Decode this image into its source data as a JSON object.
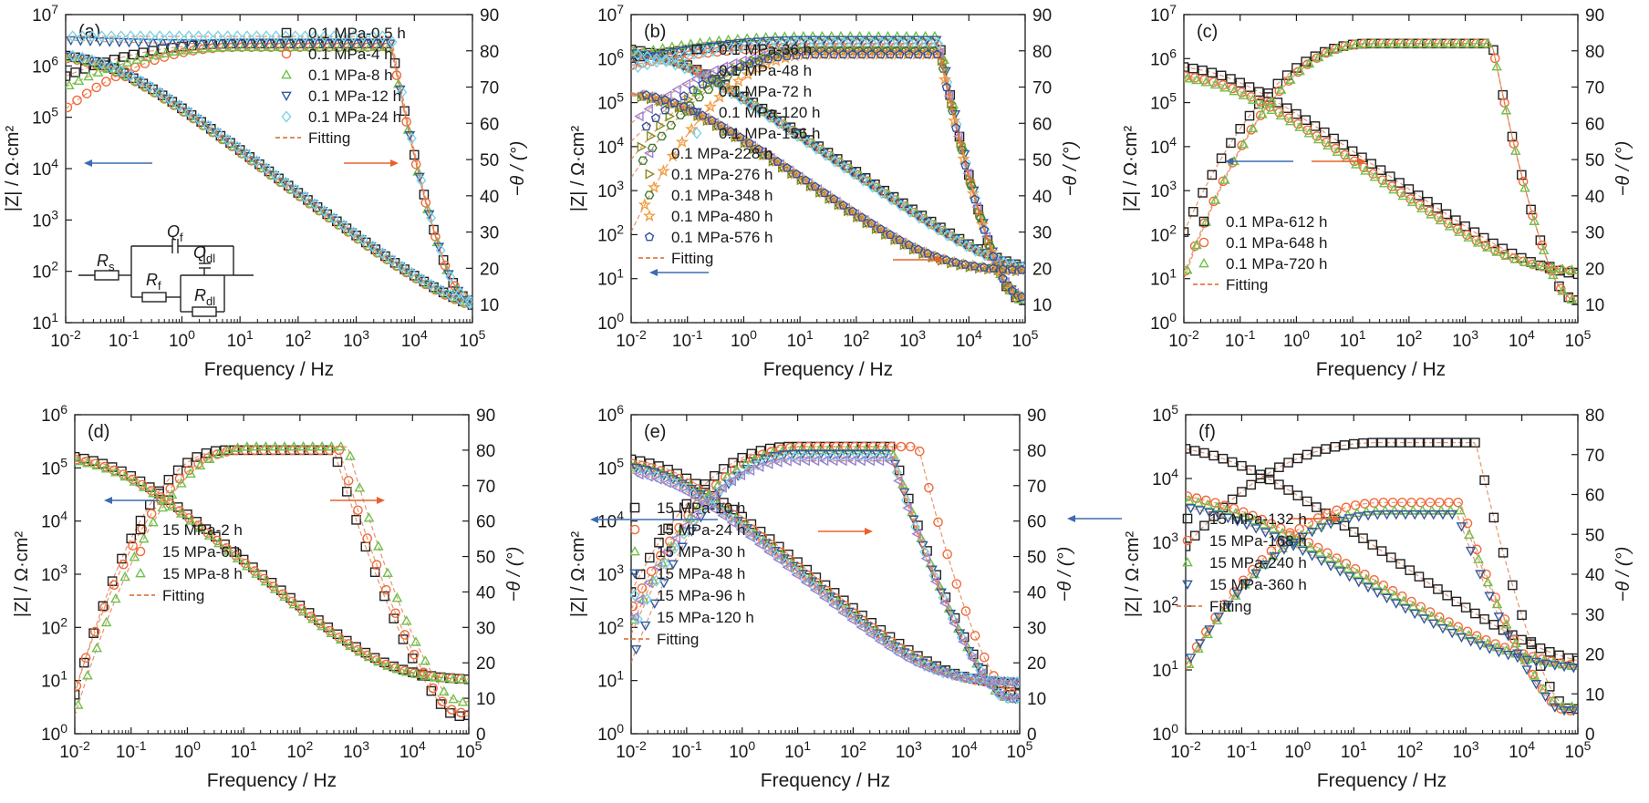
{
  "chart_data": [
    {
      "type": "line",
      "panel_label": "(a)",
      "xlabel": "Frequency / Hz",
      "ylabel_left": "|Z| / Ω·cm²",
      "ylabel_right": "−θ / (°)",
      "x_scale": "log",
      "xlim": [
        0.01,
        100000
      ],
      "xticks": [
        "10-2",
        "10-1",
        "100",
        "101",
        "102",
        "103",
        "104",
        "105"
      ],
      "y_left_scale": "log",
      "y_left_range": [
        10,
        10000000
      ],
      "y_left_ticks": [
        "101",
        "102",
        "103",
        "104",
        "105",
        "106",
        "107"
      ],
      "y_right_range": [
        5,
        90
      ],
      "y_right_ticks": [
        "10",
        "20",
        "30",
        "40",
        "50",
        "60",
        "70",
        "80",
        "90"
      ],
      "legend": [
        "0.1 MPa-0.5 h",
        "0.1 MPa-4 h",
        "0.1 MPa-8 h",
        "0.1 MPa-12 h",
        "0.1 MPa-24 h",
        "Fitting"
      ],
      "legend_position": "top-right",
      "has_circuit": true,
      "circuit_labels": {
        "rs": "R",
        "rs_sub": "s",
        "qf": "Q",
        "qf_sub": "f",
        "rf": "R",
        "rf_sub": "f",
        "qdl": "Q",
        "qdl_sub": "dl",
        "rdl": "R",
        "rdl_sub": "dl"
      },
      "series": [
        {
          "name": "0.1 MPa-0.5 h",
          "marker": "square",
          "color": "#222222",
          "z_low": 2000000,
          "z_slope": 0.84,
          "z_rs": 12,
          "phase_start": 73,
          "phase_peak": 82,
          "phase_peak_f": 10,
          "phase_fall_f": 4000,
          "phase_end": 8
        },
        {
          "name": "0.1 MPa-4 h",
          "marker": "circle",
          "color": "#f06a3c",
          "z_low": 1800000,
          "z_slope": 0.84,
          "z_rs": 12,
          "phase_start": 64,
          "phase_peak": 81,
          "phase_peak_f": 10,
          "phase_fall_f": 4000,
          "phase_end": 8
        },
        {
          "name": "0.1 MPa-8 h",
          "marker": "triangle",
          "color": "#6cc24a",
          "z_low": 1900000,
          "z_slope": 0.84,
          "z_rs": 13,
          "phase_start": 70,
          "phase_peak": 81,
          "phase_peak_f": 10,
          "phase_fall_f": 4000,
          "phase_end": 8
        },
        {
          "name": "0.1 MPa-12 h",
          "marker": "triangle-down",
          "color": "#2c5aa0",
          "z_low": 2000000,
          "z_slope": 0.84,
          "z_rs": 12,
          "phase_start": 83,
          "phase_peak": 82,
          "phase_peak_f": 10,
          "phase_fall_f": 4000,
          "phase_end": 8
        },
        {
          "name": "0.1 MPa-24 h",
          "marker": "diamond",
          "color": "#7dd3e8",
          "z_low": 2100000,
          "z_slope": 0.84,
          "z_rs": 12,
          "phase_start": 84,
          "phase_peak": 84,
          "phase_peak_f": 10,
          "phase_fall_f": 4000,
          "phase_end": 8
        }
      ]
    },
    {
      "type": "line",
      "panel_label": "(b)",
      "xlabel": "Frequency / Hz",
      "ylabel_left": "|Z| / Ω·cm²",
      "ylabel_right": "−θ / (°)",
      "x_scale": "log",
      "xlim": [
        0.01,
        100000
      ],
      "xticks": [
        "10-2",
        "10-1",
        "100",
        "101",
        "102",
        "103",
        "104",
        "105"
      ],
      "y_left_scale": "log",
      "y_left_range": [
        1,
        10000000
      ],
      "y_left_ticks": [
        "100",
        "101",
        "102",
        "103",
        "104",
        "105",
        "106",
        "107"
      ],
      "y_right_range": [
        5,
        90
      ],
      "y_right_ticks": [
        "10",
        "20",
        "30",
        "40",
        "50",
        "60",
        "70",
        "80",
        "90"
      ],
      "legend": [
        "0.1 MPa-36 h",
        "0.1 MPa-48 h",
        "0.1 MPa-72 h",
        "0.1 MPa-120 h",
        "0.1 MPa-156 h"
      ],
      "legend_position": "top-right",
      "legend2": [
        "0.1 MPa-228 h",
        "0.1 MPa-276 h",
        "0.1 MPa-348 h",
        "0.1 MPa-480 h",
        "0.1 MPa-576 h",
        "Fitting"
      ],
      "legend2_position": "bottom-left",
      "series": [
        {
          "name": "0.1 MPa-36 h",
          "marker": "square",
          "color": "#222222",
          "z_low": 2000000,
          "z_slope": 0.87,
          "z_rs": 12,
          "phase_start": 78,
          "phase_peak": 82,
          "phase_peak_f": 20,
          "phase_fall_f": 3000,
          "phase_end": 8
        },
        {
          "name": "0.1 MPa-48 h",
          "marker": "circle",
          "color": "#f06a3c",
          "z_low": 1800000,
          "z_slope": 0.87,
          "z_rs": 11,
          "phase_start": 76,
          "phase_peak": 81,
          "phase_peak_f": 20,
          "phase_fall_f": 3000,
          "phase_end": 8
        },
        {
          "name": "0.1 MPa-72 h",
          "marker": "triangle",
          "color": "#6cc24a",
          "z_low": 1900000,
          "z_slope": 0.87,
          "z_rs": 12,
          "phase_start": 79,
          "phase_peak": 84,
          "phase_peak_f": 20,
          "phase_fall_f": 3000,
          "phase_end": 8
        },
        {
          "name": "0.1 MPa-120 h",
          "marker": "triangle-down",
          "color": "#2c5aa0",
          "z_low": 1700000,
          "z_slope": 0.87,
          "z_rs": 13,
          "phase_start": 77,
          "phase_peak": 83,
          "phase_peak_f": 20,
          "phase_fall_f": 3000,
          "phase_end": 9
        },
        {
          "name": "0.1 MPa-156 h",
          "marker": "diamond",
          "color": "#7dd3e8",
          "z_low": 1600000,
          "z_slope": 0.87,
          "z_rs": 12,
          "phase_start": 75,
          "phase_peak": 82,
          "phase_peak_f": 20,
          "phase_fall_f": 3000,
          "phase_end": 9
        },
        {
          "name": "0.1 MPa-228 h",
          "marker": "triangle-left",
          "color": "#9b7fd4",
          "z_low": 200000,
          "z_slope": 0.87,
          "z_rs": 14,
          "phase_start": 60,
          "phase_peak": 80,
          "phase_peak_f": 20,
          "phase_fall_f": 3000,
          "phase_end": 9
        },
        {
          "name": "0.1 MPa-276 h",
          "marker": "triangle-right",
          "color": "#8a8a1e",
          "z_low": 180000,
          "z_slope": 0.87,
          "z_rs": 14,
          "phase_start": 50,
          "phase_peak": 80,
          "phase_peak_f": 20,
          "phase_fall_f": 3000,
          "phase_end": 9
        },
        {
          "name": "0.1 MPa-348 h",
          "marker": "hexagon",
          "color": "#3c7d2c",
          "z_low": 190000,
          "z_slope": 0.87,
          "z_rs": 15,
          "phase_start": 45,
          "phase_peak": 80,
          "phase_peak_f": 20,
          "phase_fall_f": 3000,
          "phase_end": 9
        },
        {
          "name": "0.1 MPa-480 h",
          "marker": "star",
          "color": "#f0a040",
          "z_low": 200000,
          "z_slope": 0.87,
          "z_rs": 15,
          "phase_start": 30,
          "phase_peak": 79,
          "phase_peak_f": 20,
          "phase_fall_f": 3000,
          "phase_end": 9
        },
        {
          "name": "0.1 MPa-576 h",
          "marker": "pentagon",
          "color": "#3050a0",
          "z_low": 210000,
          "z_slope": 0.87,
          "z_rs": 15,
          "phase_start": 55,
          "phase_peak": 79,
          "phase_peak_f": 20,
          "phase_fall_f": 3000,
          "phase_end": 9
        }
      ]
    },
    {
      "type": "line",
      "panel_label": "(c)",
      "xlabel": "Frequency / Hz",
      "ylabel_left": "|Z| / Ω·cm²",
      "ylabel_right": "−θ / (°)",
      "x_scale": "log",
      "xlim": [
        0.01,
        100000
      ],
      "xticks": [
        "10-2",
        "10-1",
        "100",
        "101",
        "102",
        "103",
        "104",
        "105"
      ],
      "y_left_scale": "log",
      "y_left_range": [
        1,
        10000000
      ],
      "y_left_ticks": [
        "100",
        "101",
        "102",
        "103",
        "104",
        "105",
        "106",
        "107"
      ],
      "y_right_range": [
        5,
        90
      ],
      "y_right_ticks": [
        "10",
        "20",
        "30",
        "40",
        "50",
        "60",
        "70",
        "80",
        "90"
      ],
      "legend": [
        "0.1 MPa-612 h",
        "0.1 MPa-648 h",
        "0.1 MPa-720 h",
        "Fitting"
      ],
      "legend_position": "bottom-left",
      "series": [
        {
          "name": "0.1 MPa-612 h",
          "marker": "square",
          "color": "#222222",
          "z_low": 800000,
          "z_slope": 0.87,
          "z_rs": 10,
          "phase_start": 30,
          "phase_peak": 82,
          "phase_peak_f": 20,
          "phase_fall_f": 3000,
          "phase_end": 8
        },
        {
          "name": "0.1 MPa-648 h",
          "marker": "circle",
          "color": "#f06a3c",
          "z_low": 500000,
          "z_slope": 0.87,
          "z_rs": 13,
          "phase_start": 18,
          "phase_peak": 82,
          "phase_peak_f": 20,
          "phase_fall_f": 3000,
          "phase_end": 8
        },
        {
          "name": "0.1 MPa-720 h",
          "marker": "triangle",
          "color": "#6cc24a",
          "z_low": 450000,
          "z_slope": 0.87,
          "z_rs": 14,
          "phase_start": 17,
          "phase_peak": 82,
          "phase_peak_f": 20,
          "phase_fall_f": 3000,
          "phase_end": 8
        }
      ]
    },
    {
      "type": "line",
      "panel_label": "(d)",
      "xlabel": "Frequency / Hz",
      "ylabel_left": "|Z| / Ω·cm²",
      "ylabel_right": "−θ / (°)",
      "x_scale": "log",
      "xlim": [
        0.01,
        100000
      ],
      "xticks": [
        "10-2",
        "10-1",
        "100",
        "101",
        "102",
        "103",
        "104",
        "105"
      ],
      "y_left_scale": "log",
      "y_left_range": [
        1,
        1000000
      ],
      "y_left_ticks": [
        "100",
        "101",
        "102",
        "103",
        "104",
        "105",
        "106"
      ],
      "y_right_range": [
        0,
        90
      ],
      "y_right_ticks": [
        "0",
        "10",
        "20",
        "30",
        "40",
        "50",
        "60",
        "70",
        "80",
        "90"
      ],
      "legend": [
        "15 MPa-2 h",
        "15 MPa-6 h",
        "15 MPa-8 h",
        "Fitting"
      ],
      "legend_position": "bottom-left",
      "series": [
        {
          "name": "15 MPa-2 h",
          "marker": "square",
          "color": "#222222",
          "z_low": 200000,
          "z_slope": 0.88,
          "z_rs": 10,
          "phase_start": 11,
          "phase_peak": 80,
          "phase_peak_f": 5,
          "phase_fall_f": 400,
          "phase_end": 2
        },
        {
          "name": "15 MPa-6 h",
          "marker": "circle",
          "color": "#f06a3c",
          "z_low": 180000,
          "z_slope": 0.88,
          "z_rs": 10,
          "phase_start": 12,
          "phase_peak": 80,
          "phase_peak_f": 10,
          "phase_fall_f": 500,
          "phase_end": 3
        },
        {
          "name": "15 MPa-8 h",
          "marker": "triangle",
          "color": "#6cc24a",
          "z_low": 170000,
          "z_slope": 0.88,
          "z_rs": 10,
          "phase_start": 5,
          "phase_peak": 81,
          "phase_peak_f": 15,
          "phase_fall_f": 700,
          "phase_end": 6
        }
      ]
    },
    {
      "type": "line",
      "panel_label": "(e)",
      "xlabel": "Frequency / Hz",
      "ylabel_left": "|Z| / Ω·cm²",
      "ylabel_right": "−θ / (°)",
      "x_scale": "log",
      "xlim": [
        0.01,
        100000
      ],
      "xticks": [
        "10-2",
        "10-1",
        "100",
        "101",
        "102",
        "103",
        "104",
        "105"
      ],
      "y_left_scale": "log",
      "y_left_range": [
        1,
        1000000
      ],
      "y_left_ticks": [
        "100",
        "101",
        "102",
        "103",
        "104",
        "105",
        "106"
      ],
      "y_right_range": [
        0,
        90
      ],
      "y_right_ticks": [
        "0",
        "10",
        "20",
        "30",
        "40",
        "50",
        "60",
        "70",
        "80",
        "90"
      ],
      "legend": [
        "15 MPa-10 h",
        "15 MPa-24 h",
        "15 MPa-30 h",
        "15 MPa-48 h",
        "15 MPa-96 h",
        "15 MPa-120 h",
        "Fitting"
      ],
      "legend_position": "bottom-left",
      "series": [
        {
          "name": "15 MPa-10 h",
          "marker": "square",
          "color": "#222222",
          "z_low": 180000,
          "z_slope": 0.88,
          "z_rs": 8,
          "phase_start": 40,
          "phase_peak": 81,
          "phase_peak_f": 8,
          "phase_fall_f": 500,
          "phase_end": 8
        },
        {
          "name": "15 MPa-24 h",
          "marker": "circle",
          "color": "#f06a3c",
          "z_low": 150000,
          "z_slope": 0.88,
          "z_rs": 8,
          "phase_start": 35,
          "phase_peak": 81,
          "phase_peak_f": 15,
          "phase_fall_f": 1500,
          "phase_end": 8
        },
        {
          "name": "15 MPa-30 h",
          "marker": "triangle",
          "color": "#6cc24a",
          "z_low": 140000,
          "z_slope": 0.88,
          "z_rs": 9,
          "phase_start": 30,
          "phase_peak": 80,
          "phase_peak_f": 10,
          "phase_fall_f": 500,
          "phase_end": 7
        },
        {
          "name": "15 MPa-48 h",
          "marker": "triangle-down",
          "color": "#2c5aa0",
          "z_low": 130000,
          "z_slope": 0.88,
          "z_rs": 9,
          "phase_start": 20,
          "phase_peak": 79,
          "phase_peak_f": 10,
          "phase_fall_f": 500,
          "phase_end": 7
        },
        {
          "name": "15 MPa-96 h",
          "marker": "diamond",
          "color": "#7dd3e8",
          "z_low": 110000,
          "z_slope": 0.88,
          "z_rs": 9,
          "phase_start": 28,
          "phase_peak": 78,
          "phase_peak_f": 10,
          "phase_fall_f": 500,
          "phase_end": 7
        },
        {
          "name": "15 MPa-120 h",
          "marker": "triangle-left",
          "color": "#9b7fd4",
          "z_low": 100000,
          "z_slope": 0.88,
          "z_rs": 9,
          "phase_start": 33,
          "phase_peak": 77,
          "phase_peak_f": 10,
          "phase_fall_f": 500,
          "phase_end": 7
        }
      ]
    },
    {
      "type": "line",
      "panel_label": "(f)",
      "xlabel": "Frequency / Hz",
      "ylabel_left": "|Z| / Ω·cm²",
      "ylabel_right": "−θ / (°)",
      "x_scale": "log",
      "xlim": [
        0.01,
        100000
      ],
      "xticks": [
        "10-2",
        "10-1",
        "100",
        "101",
        "102",
        "103",
        "104",
        "105"
      ],
      "y_left_scale": "log",
      "y_left_range": [
        1,
        100000
      ],
      "y_left_ticks": [
        "100",
        "101",
        "102",
        "103",
        "104",
        "105"
      ],
      "y_right_range": [
        0,
        80
      ],
      "y_right_ticks": [
        "0",
        "10",
        "20",
        "30",
        "40",
        "50",
        "60",
        "70",
        "80"
      ],
      "legend": [
        "15 MPa-132 h",
        "15 MPa-168 h",
        "15 MPa-240 h",
        "15 MPa-360 h",
        "Fitting"
      ],
      "legend_position": "bottom-left",
      "series": [
        {
          "name": "15 MPa-132 h",
          "marker": "square",
          "color": "#222222",
          "z_low": 40000,
          "z_slope": 0.62,
          "z_rs": 9,
          "phase_start": 47,
          "phase_peak": 73,
          "phase_peak_f": 30,
          "phase_fall_f": 1500,
          "phase_end": 3
        },
        {
          "name": "15 MPa-168 h",
          "marker": "circle",
          "color": "#f06a3c",
          "z_low": 7500,
          "z_slope": 0.55,
          "z_rs": 9,
          "phase_start": 17,
          "phase_peak": 58,
          "phase_peak_f": 40,
          "phase_fall_f": 800,
          "phase_end": 3
        },
        {
          "name": "15 MPa-240 h",
          "marker": "triangle",
          "color": "#6cc24a",
          "z_low": 6500,
          "z_slope": 0.55,
          "z_rs": 9,
          "phase_start": 16,
          "phase_peak": 56,
          "phase_peak_f": 40,
          "phase_fall_f": 800,
          "phase_end": 4
        },
        {
          "name": "15 MPa-360 h",
          "marker": "triangle-down",
          "color": "#2c5aa0",
          "z_low": 5000,
          "z_slope": 0.55,
          "z_rs": 9,
          "phase_start": 17,
          "phase_peak": 55,
          "phase_peak_f": 40,
          "phase_fall_f": 700,
          "phase_end": 3
        }
      ]
    }
  ],
  "colors": {
    "fit_line": "#e07b4a",
    "arrow_left": "#3b6cb0",
    "arrow_right": "#e8602c",
    "axis": "#1a1a1a"
  }
}
